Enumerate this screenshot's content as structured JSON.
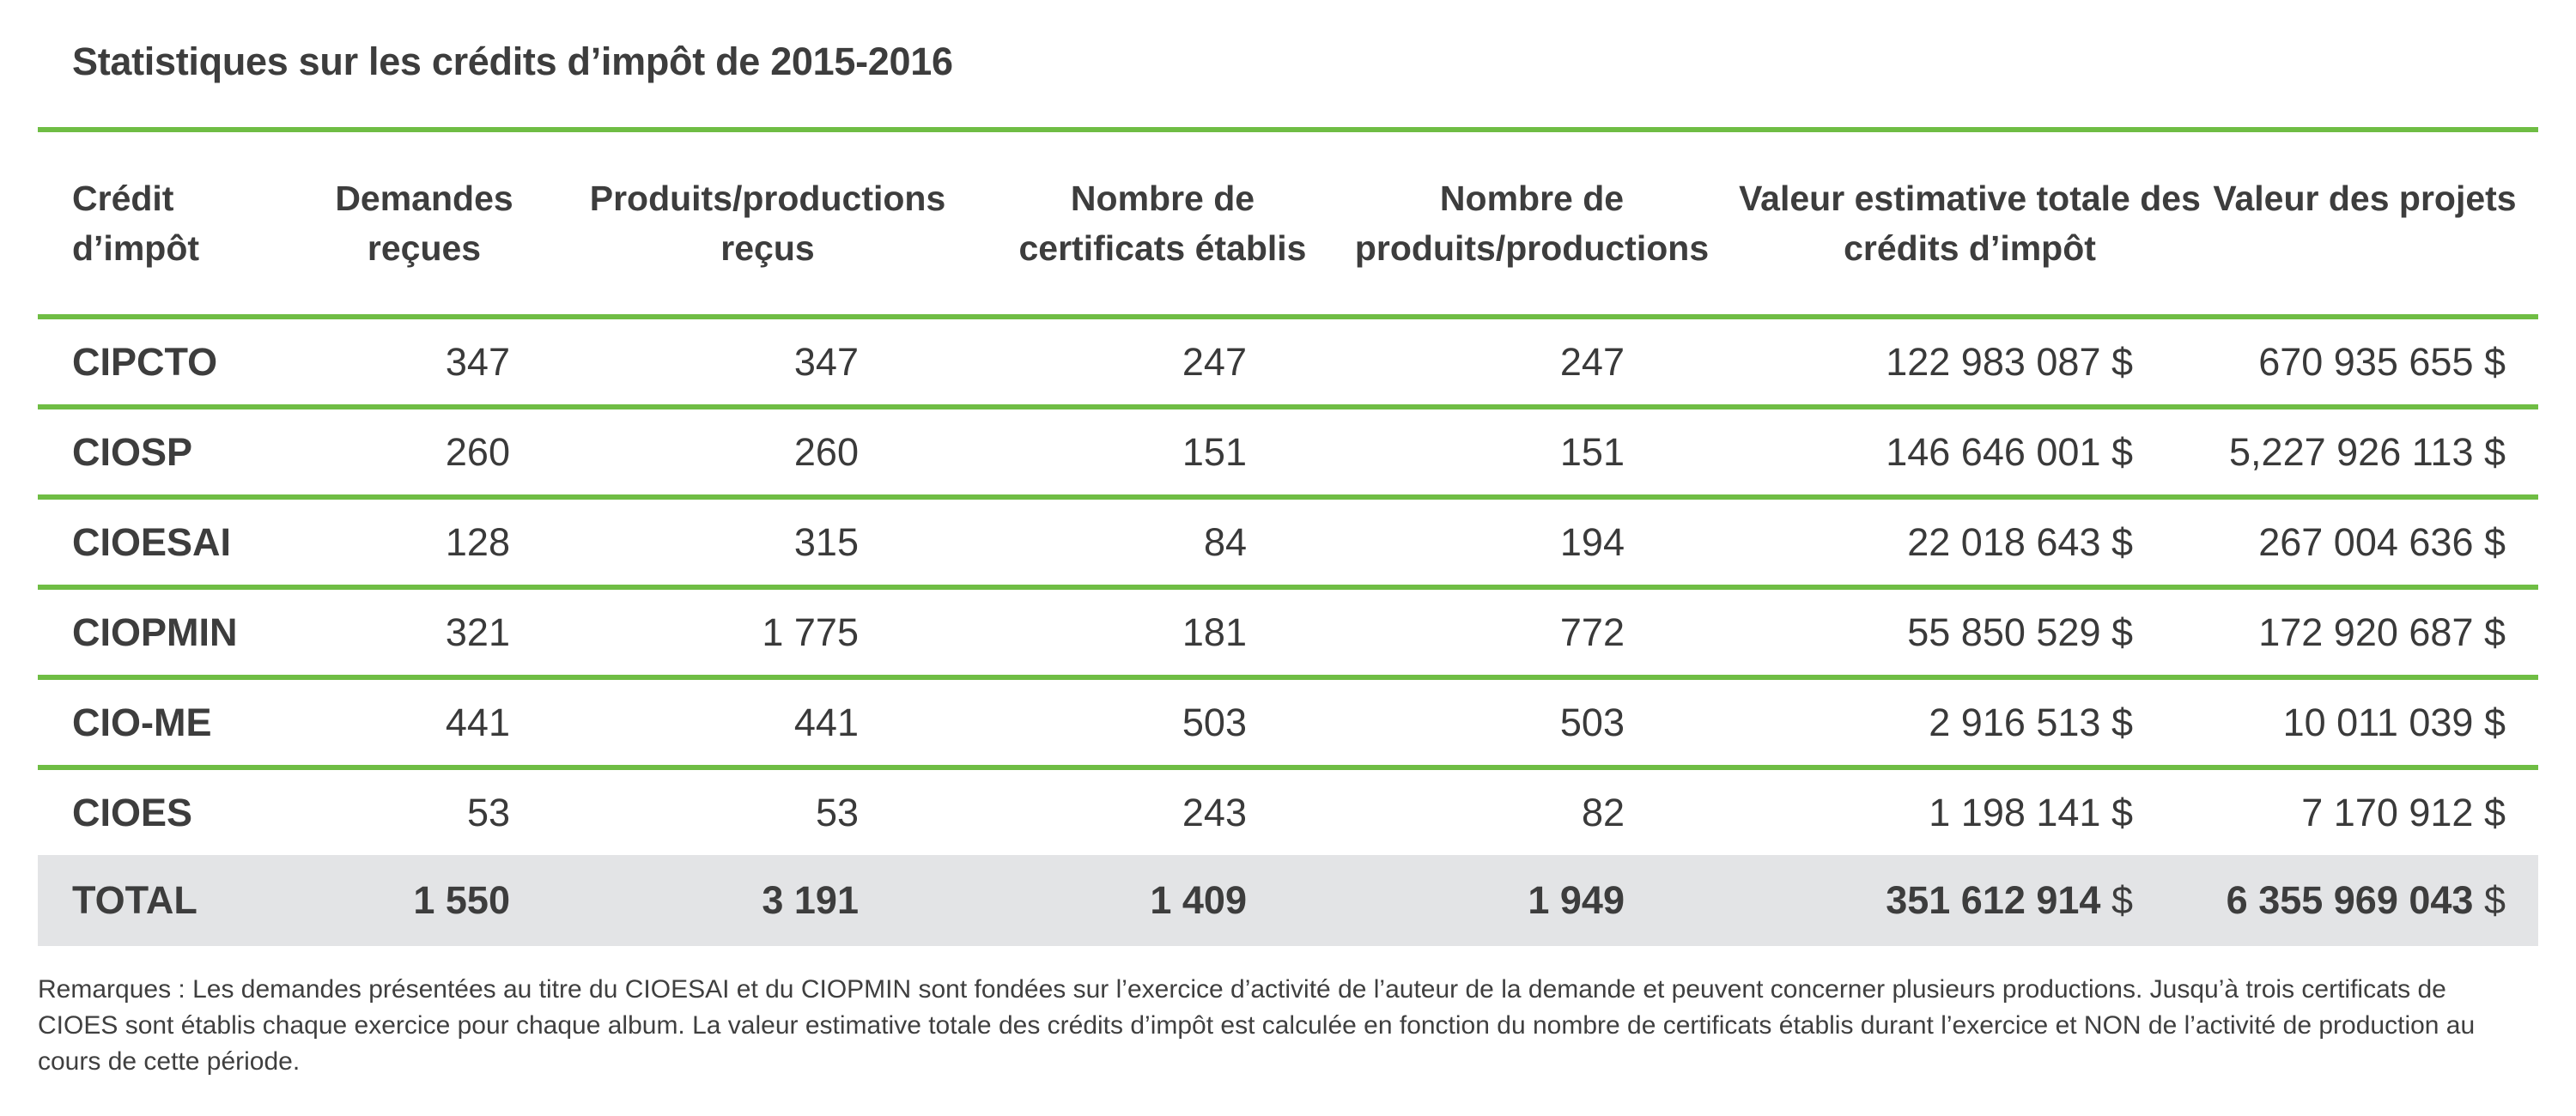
{
  "title": "Statistiques sur les crédits d’impôt de 2015-2016",
  "table": {
    "headers": [
      "Crédit d’impôt",
      "Demandes reçues",
      "Produits/productions reçus",
      "Nombre de certificats établis",
      "Nombre de produits/productions",
      "Valeur estimative totale des crédits d’impôt",
      "Valeur des projets"
    ],
    "rows": [
      [
        "CIPCTO",
        "347",
        "347",
        "247",
        "247",
        "122 983 087 $",
        "670 935 655 $"
      ],
      [
        "CIOSP",
        "260",
        "260",
        "151",
        "151",
        "146 646 001 $",
        "5,227 926 113 $"
      ],
      [
        "CIOESAI",
        "128",
        "315",
        "84",
        "194",
        "22 018 643 $",
        "267 004 636 $"
      ],
      [
        "CIOPMIN",
        "321",
        "1 775",
        "181",
        "772",
        "55 850 529 $",
        "172 920 687 $"
      ],
      [
        "CIO-ME",
        "441",
        "441",
        "503",
        "503",
        "2 916 513 $",
        "10 011 039 $"
      ],
      [
        "CIOES",
        "53",
        "53",
        "243",
        "82",
        "1 198 141 $",
        "7 170 912 $"
      ]
    ],
    "total": {
      "label": "TOTAL",
      "demandes": "1 550",
      "produits": "3 191",
      "certificats": "1 409",
      "nombre": "1 949",
      "valeur_credits": "351 612 914",
      "valeur_projets": "6 355 969 043",
      "currency": "$"
    }
  },
  "notes": "Remarques : Les demandes présentées au titre du CIOESAI et du CIOPMIN sont fondées sur l’exercice d’activité de l’auteur de la demande et peuvent concerner plusieurs productions. Jusqu’à trois certificats de CIOES sont établis chaque exercice pour chaque album. La valeur estimative totale des crédits d’impôt est calculée en fonction du nombre de certificats établis durant l’exercice et NON de l’activité de production au cours de cette période.",
  "colors": {
    "rule": "#6fbd44",
    "total_bg": "#e3e4e6",
    "text": "#3a3a3a"
  }
}
